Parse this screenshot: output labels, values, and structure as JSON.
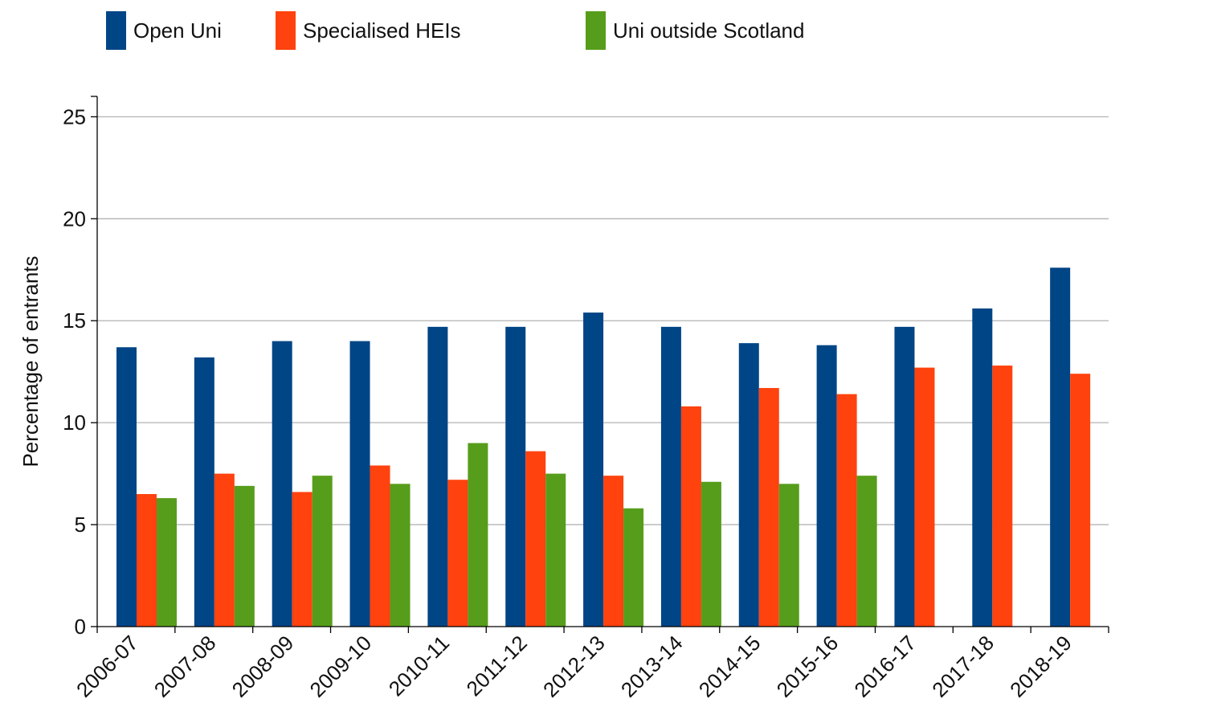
{
  "chart_data": {
    "type": "bar",
    "categories": [
      "2006-07",
      "2007-08",
      "2008-09",
      "2009-10",
      "2010-11",
      "2011-12",
      "2012-13",
      "2013-14",
      "2014-15",
      "2015-16",
      "2016-17",
      "2017-18",
      "2018-19"
    ],
    "series": [
      {
        "name": "Open Uni",
        "color": "#004586",
        "values": [
          13.7,
          13.2,
          14.0,
          14.0,
          14.7,
          14.7,
          15.4,
          14.7,
          13.9,
          13.8,
          14.7,
          15.6,
          17.6
        ]
      },
      {
        "name": "Specialised HEIs",
        "color": "#ff420e",
        "values": [
          6.5,
          7.5,
          6.6,
          7.9,
          7.2,
          8.6,
          7.4,
          10.8,
          11.7,
          11.4,
          12.7,
          12.8,
          12.4
        ]
      },
      {
        "name": "Uni outside Scotland",
        "color": "#579d1c",
        "values": [
          6.3,
          6.9,
          7.4,
          7.0,
          9.0,
          7.5,
          5.8,
          7.1,
          7.0,
          7.4,
          null,
          null,
          null
        ]
      }
    ],
    "ylabel": "Percentage of entrants",
    "xlabel": "",
    "ylim": [
      0,
      26
    ],
    "yticks": [
      0,
      5,
      10,
      15,
      20,
      25
    ],
    "grid": true,
    "legend_position": "top"
  }
}
